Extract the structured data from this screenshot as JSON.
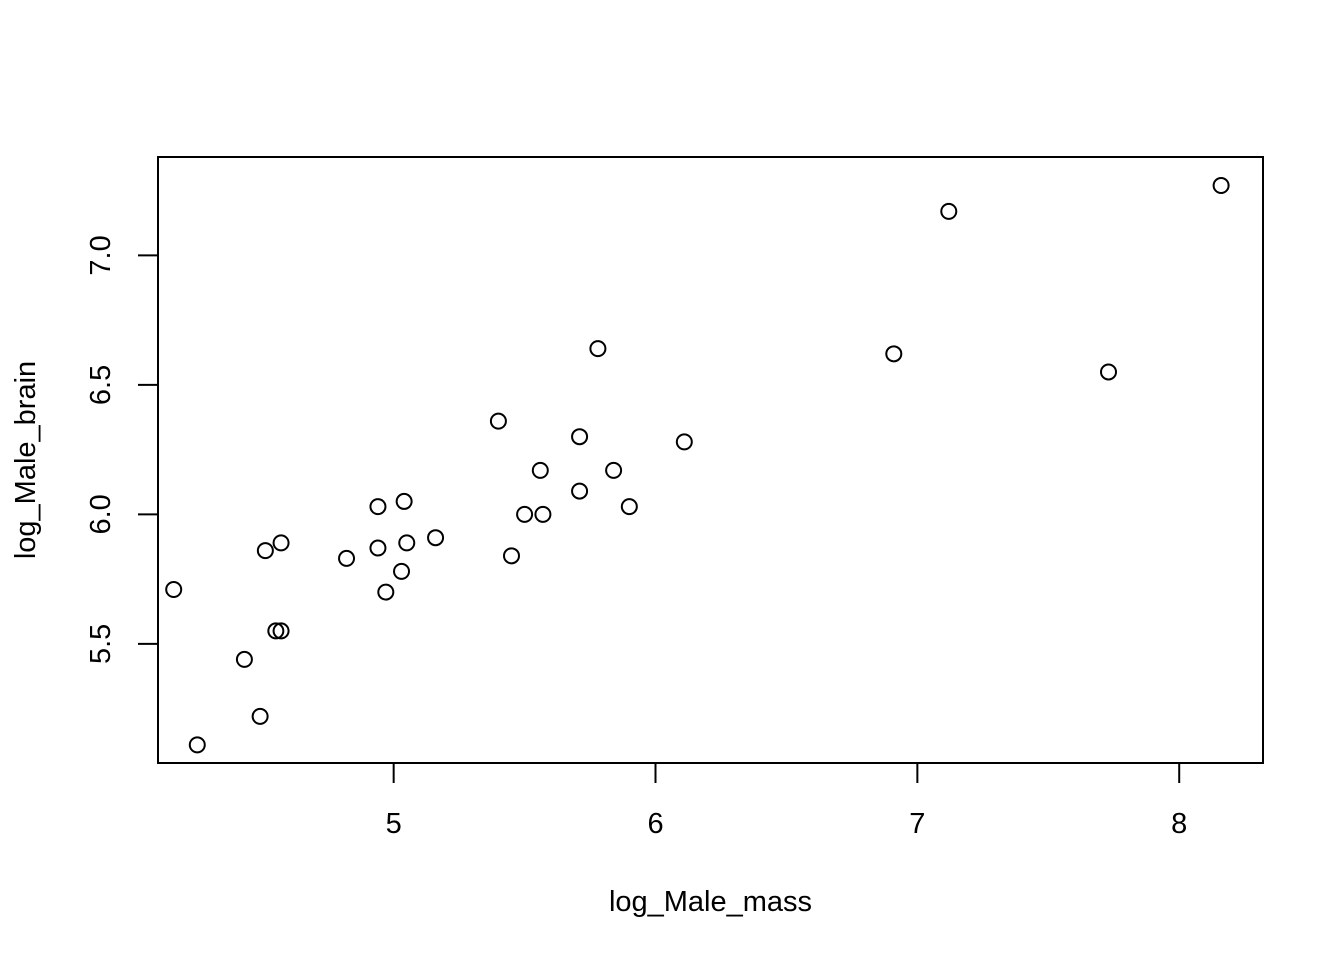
{
  "chart_data": {
    "type": "scatter",
    "title": "",
    "xlabel": "log_Male_mass",
    "ylabel": "log_Male_brain",
    "xlim": [
      4.1,
      8.32
    ],
    "ylim": [
      5.04,
      7.38
    ],
    "x_ticks": [
      5,
      6,
      7,
      8
    ],
    "x_tick_labels": [
      "5",
      "6",
      "7",
      "8"
    ],
    "y_ticks": [
      5.5,
      6.0,
      6.5,
      7.0
    ],
    "y_tick_labels": [
      "5.5",
      "6.0",
      "6.5",
      "7.0"
    ],
    "grid": false,
    "legend": "none",
    "marker": "open-circle",
    "colors": {
      "marker": "#000000",
      "axis": "#000000",
      "background": "#ffffff"
    },
    "points": [
      {
        "x": 4.16,
        "y": 5.71
      },
      {
        "x": 4.25,
        "y": 5.11
      },
      {
        "x": 4.43,
        "y": 5.44
      },
      {
        "x": 4.49,
        "y": 5.22
      },
      {
        "x": 4.51,
        "y": 5.86
      },
      {
        "x": 4.55,
        "y": 5.55
      },
      {
        "x": 4.57,
        "y": 5.55
      },
      {
        "x": 4.57,
        "y": 5.89
      },
      {
        "x": 4.82,
        "y": 5.83
      },
      {
        "x": 4.94,
        "y": 5.87
      },
      {
        "x": 4.94,
        "y": 6.03
      },
      {
        "x": 4.97,
        "y": 5.7
      },
      {
        "x": 5.03,
        "y": 5.78
      },
      {
        "x": 5.04,
        "y": 6.05
      },
      {
        "x": 5.05,
        "y": 5.89
      },
      {
        "x": 5.16,
        "y": 5.91
      },
      {
        "x": 5.4,
        "y": 6.36
      },
      {
        "x": 5.45,
        "y": 5.84
      },
      {
        "x": 5.5,
        "y": 6.0
      },
      {
        "x": 5.56,
        "y": 6.17
      },
      {
        "x": 5.57,
        "y": 6.0
      },
      {
        "x": 5.71,
        "y": 6.3
      },
      {
        "x": 5.71,
        "y": 6.09
      },
      {
        "x": 5.78,
        "y": 6.64
      },
      {
        "x": 5.84,
        "y": 6.17
      },
      {
        "x": 5.9,
        "y": 6.03
      },
      {
        "x": 6.11,
        "y": 6.28
      },
      {
        "x": 6.91,
        "y": 6.62
      },
      {
        "x": 7.12,
        "y": 7.17
      },
      {
        "x": 7.73,
        "y": 6.55
      },
      {
        "x": 8.16,
        "y": 7.27
      }
    ]
  }
}
